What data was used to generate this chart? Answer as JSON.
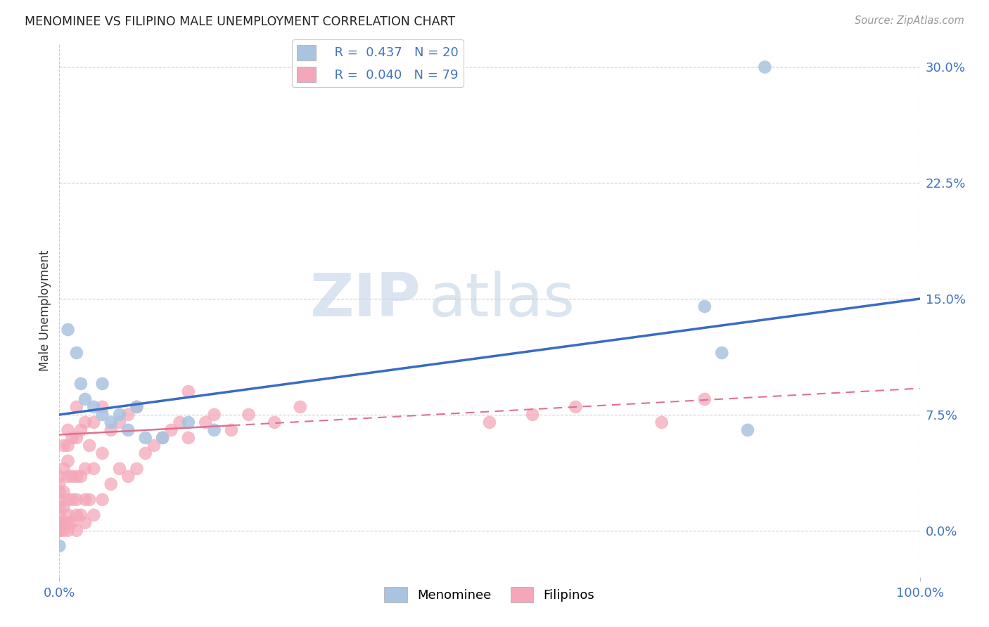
{
  "title": "MENOMINEE VS FILIPINO MALE UNEMPLOYMENT CORRELATION CHART",
  "source": "Source: ZipAtlas.com",
  "ylabel_label": "Male Unemployment",
  "right_yticks": [
    0.0,
    0.075,
    0.15,
    0.225,
    0.3
  ],
  "right_ytick_labels": [
    "0.0%",
    "7.5%",
    "15.0%",
    "22.5%",
    "30.0%"
  ],
  "xlim": [
    0.0,
    1.0
  ],
  "ylim": [
    -0.03,
    0.315
  ],
  "color_menominee": "#a8c4e0",
  "color_filipinos": "#f4a7b9",
  "color_line_menominee": "#3a6bc4",
  "color_line_filipinos": "#e07090",
  "watermark_zip": "ZIP",
  "watermark_atlas": "atlas",
  "menominee_line_x0": 0.0,
  "menominee_line_y0": 0.075,
  "menominee_line_x1": 1.0,
  "menominee_line_y1": 0.15,
  "filipinos_line_x0": 0.0,
  "filipinos_line_y0": 0.062,
  "filipinos_line_x1": 1.0,
  "filipinos_line_y1": 0.092,
  "menominee_x": [
    0.01,
    0.02,
    0.025,
    0.03,
    0.04,
    0.05,
    0.05,
    0.06,
    0.07,
    0.08,
    0.09,
    0.1,
    0.12,
    0.15,
    0.18,
    0.75,
    0.77,
    0.8,
    0.82,
    0.0
  ],
  "menominee_y": [
    0.13,
    0.115,
    0.095,
    0.085,
    0.08,
    0.075,
    0.095,
    0.07,
    0.075,
    0.065,
    0.08,
    0.06,
    0.06,
    0.07,
    0.065,
    0.145,
    0.115,
    0.065,
    0.3,
    -0.01
  ],
  "filipinos_x": [
    0.0,
    0.0,
    0.0,
    0.0,
    0.0,
    0.0,
    0.0,
    0.0,
    0.0,
    0.0,
    0.0,
    0.0,
    0.0,
    0.005,
    0.005,
    0.005,
    0.005,
    0.005,
    0.005,
    0.01,
    0.01,
    0.01,
    0.01,
    0.01,
    0.01,
    0.01,
    0.01,
    0.015,
    0.015,
    0.015,
    0.015,
    0.02,
    0.02,
    0.02,
    0.02,
    0.02,
    0.02,
    0.025,
    0.025,
    0.025,
    0.03,
    0.03,
    0.03,
    0.03,
    0.035,
    0.035,
    0.04,
    0.04,
    0.04,
    0.05,
    0.05,
    0.05,
    0.06,
    0.06,
    0.07,
    0.07,
    0.08,
    0.08,
    0.09,
    0.09,
    0.1,
    0.11,
    0.12,
    0.13,
    0.14,
    0.15,
    0.15,
    0.17,
    0.18,
    0.2,
    0.22,
    0.25,
    0.28,
    0.5,
    0.55,
    0.6,
    0.7,
    0.75
  ],
  "filipinos_y": [
    0.0,
    0.0,
    0.0,
    0.0,
    0.0,
    0.005,
    0.005,
    0.01,
    0.015,
    0.02,
    0.025,
    0.03,
    0.035,
    0.0,
    0.005,
    0.015,
    0.025,
    0.04,
    0.055,
    0.0,
    0.005,
    0.01,
    0.02,
    0.035,
    0.045,
    0.055,
    0.065,
    0.005,
    0.02,
    0.035,
    0.06,
    0.0,
    0.01,
    0.02,
    0.035,
    0.06,
    0.08,
    0.01,
    0.035,
    0.065,
    0.005,
    0.02,
    0.04,
    0.07,
    0.02,
    0.055,
    0.01,
    0.04,
    0.07,
    0.02,
    0.05,
    0.08,
    0.03,
    0.065,
    0.04,
    0.07,
    0.035,
    0.075,
    0.04,
    0.08,
    0.05,
    0.055,
    0.06,
    0.065,
    0.07,
    0.06,
    0.09,
    0.07,
    0.075,
    0.065,
    0.075,
    0.07,
    0.08,
    0.07,
    0.075,
    0.08,
    0.07,
    0.085
  ]
}
